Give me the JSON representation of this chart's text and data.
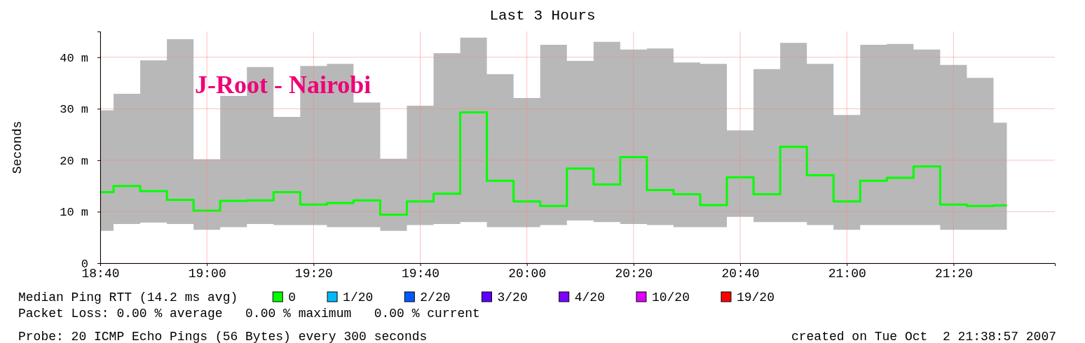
{
  "chart_data": {
    "type": "step",
    "title": "Last 3 Hours",
    "ylabel": "Seconds",
    "legend_title": "Median Ping RTT (14.2 ms avg)",
    "legend": "bottom",
    "grid": true,
    "marker": "none",
    "line_style": "solid",
    "x": [
      "2007-10-02T18:40",
      "2007-10-02T18:45",
      "2007-10-02T18:50",
      "2007-10-02T18:55",
      "2007-10-02T19:00",
      "2007-10-02T19:05",
      "2007-10-02T19:10",
      "2007-10-02T19:15",
      "2007-10-02T19:20",
      "2007-10-02T19:25",
      "2007-10-02T19:30",
      "2007-10-02T19:35",
      "2007-10-02T19:40",
      "2007-10-02T19:45",
      "2007-10-02T19:50",
      "2007-10-02T19:55",
      "2007-10-02T20:00",
      "2007-10-02T20:05",
      "2007-10-02T20:10",
      "2007-10-02T20:15",
      "2007-10-02T20:20",
      "2007-10-02T20:25",
      "2007-10-02T20:30",
      "2007-10-02T20:35",
      "2007-10-02T20:40",
      "2007-10-02T20:45",
      "2007-10-02T20:50",
      "2007-10-02T20:55",
      "2007-10-02T21:00",
      "2007-10-02T21:05",
      "2007-10-02T21:10",
      "2007-10-02T21:15",
      "2007-10-02T21:20",
      "2007-10-02T21:25",
      "2007-10-02T21:30"
    ],
    "xlim": [
      "2007-10-02T18:40",
      "2007-10-02T21:39"
    ],
    "xticks": [
      {
        "value": "2007-10-02T18:40",
        "label": "18:40"
      },
      {
        "value": "2007-10-02T19:00",
        "label": "19:00"
      },
      {
        "value": "2007-10-02T19:20",
        "label": "19:20"
      },
      {
        "value": "2007-10-02T19:40",
        "label": "19:40"
      },
      {
        "value": "2007-10-02T20:00",
        "label": "20:00"
      },
      {
        "value": "2007-10-02T20:20",
        "label": "20:20"
      },
      {
        "value": "2007-10-02T20:40",
        "label": "20:40"
      },
      {
        "value": "2007-10-02T21:00",
        "label": "21:00"
      },
      {
        "value": "2007-10-02T21:20",
        "label": "21:20"
      }
    ],
    "ylim": [
      0,
      45
    ],
    "yticks": [
      0,
      {
        "value": 10,
        "label": "10 m"
      },
      {
        "value": 20,
        "label": "20 m"
      },
      {
        "value": 30,
        "label": "30 m"
      },
      {
        "value": 40,
        "label": "40 m"
      }
    ],
    "series": [
      {
        "name": "0",
        "color": "#00ff00",
        "lower": [
          6.3,
          7.6,
          7.9,
          7.6,
          6.5,
          7,
          7.6,
          7.4,
          7.4,
          7,
          7,
          6.3,
          7.4,
          7.6,
          8,
          7,
          7,
          7.4,
          8.3,
          8,
          7.6,
          7.4,
          7,
          7,
          9,
          8,
          8,
          7.4,
          6.5,
          7.4,
          7.4,
          7.4,
          6.5,
          6.5,
          6.5
        ],
        "upper": [
          29.7,
          32.9,
          39.4,
          43.5,
          20.2,
          32.5,
          38.1,
          28.4,
          38.3,
          38.7,
          31.2,
          20.3,
          30.6,
          40.8,
          43.8,
          36.7,
          32.1,
          42.4,
          39.3,
          43,
          41.5,
          41.7,
          39,
          38.7,
          25.8,
          37.7,
          42.8,
          38.7,
          28.8,
          42.4,
          42.6,
          41.5,
          38.5,
          36,
          27.3
        ],
        "values": [
          13.8,
          15,
          14,
          12.3,
          10.2,
          12.1,
          12.2,
          13.8,
          11.4,
          11.7,
          12.2,
          9.4,
          12,
          13.5,
          29.3,
          16,
          12,
          11.1,
          18.4,
          15.3,
          20.6,
          14.2,
          13.4,
          11.3,
          16.7,
          13.4,
          22.6,
          17.1,
          12,
          16,
          16.6,
          18.8,
          11.4,
          11.1,
          11.2
        ]
      },
      {
        "name": "1/20",
        "color": "#00b8ff",
        "values": [
          null,
          null,
          null,
          null,
          null,
          null,
          null,
          null,
          null,
          null,
          null,
          null,
          null,
          null,
          null,
          null,
          null,
          null,
          null,
          null,
          null,
          null,
          null,
          null,
          null,
          null,
          null,
          null,
          null,
          null,
          null,
          null,
          null,
          null,
          null
        ]
      },
      {
        "name": "2/20",
        "color": "#0059ff",
        "values": [
          null,
          null,
          null,
          null,
          null,
          null,
          null,
          null,
          null,
          null,
          null,
          null,
          null,
          null,
          null,
          null,
          null,
          null,
          null,
          null,
          null,
          null,
          null,
          null,
          null,
          null,
          null,
          null,
          null,
          null,
          null,
          null,
          null,
          null,
          null
        ]
      },
      {
        "name": "3/20",
        "color": "#5e00ff",
        "values": [
          null,
          null,
          null,
          null,
          null,
          null,
          null,
          null,
          null,
          null,
          null,
          null,
          null,
          null,
          null,
          null,
          null,
          null,
          null,
          null,
          null,
          null,
          null,
          null,
          null,
          null,
          null,
          null,
          null,
          null,
          null,
          null,
          null,
          null,
          null
        ]
      },
      {
        "name": "4/20",
        "color": "#7e00ff",
        "values": [
          null,
          null,
          null,
          null,
          null,
          null,
          null,
          null,
          null,
          null,
          null,
          null,
          null,
          null,
          null,
          null,
          null,
          null,
          null,
          null,
          null,
          null,
          null,
          null,
          null,
          null,
          null,
          null,
          null,
          null,
          null,
          null,
          null,
          null,
          null
        ]
      },
      {
        "name": "10/20",
        "color": "#dd00ff",
        "values": [
          null,
          null,
          null,
          null,
          null,
          null,
          null,
          null,
          null,
          null,
          null,
          null,
          null,
          null,
          null,
          null,
          null,
          null,
          null,
          null,
          null,
          null,
          null,
          null,
          null,
          null,
          null,
          null,
          null,
          null,
          null,
          null,
          null,
          null,
          null
        ]
      },
      {
        "name": "19/20",
        "color": "#ff0000",
        "values": [
          null,
          null,
          null,
          null,
          null,
          null,
          null,
          null,
          null,
          null,
          null,
          null,
          null,
          null,
          null,
          null,
          null,
          null,
          null,
          null,
          null,
          null,
          null,
          null,
          null,
          null,
          null,
          null,
          null,
          null,
          null,
          null,
          null,
          null,
          null
        ]
      }
    ],
    "annotations": [
      "J-Root - Nairobi",
      "Packet Loss: 0.00 % average   0.00 % maximum   0.00 % current",
      "Probe: 20 ICMP Echo Pings (56 Bytes) every 300 seconds",
      "created on Tue Oct  2 21:38:57 2007"
    ]
  }
}
